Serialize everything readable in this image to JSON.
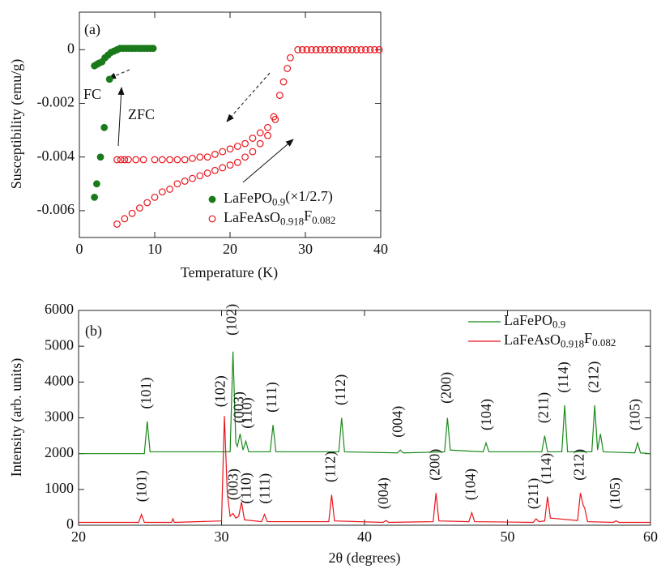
{
  "chart_data": [
    {
      "type": "scatter",
      "annotations": [
        "(a)",
        "FC",
        "ZFC"
      ],
      "x_label": "Temperature (K)",
      "y_label": "Susceptibility (emu/g)",
      "xlim": [
        0,
        40
      ],
      "xticks": [
        0,
        10,
        20,
        30,
        40
      ],
      "ylim": [
        -0.007,
        0.0014
      ],
      "yticks": [
        0,
        -0.002,
        -0.004,
        -0.006
      ],
      "series": [
        {
          "name": "LaFePO0.9(×1/2.7)",
          "color": "#1a7a1a",
          "marker": "filled",
          "x": [
            2,
            2.3,
            2.8,
            3.3,
            4,
            2,
            2.3,
            2.6,
            3,
            3.4,
            3.8,
            4.2,
            4.6,
            5,
            5.4,
            5.8,
            6.2,
            6.6,
            7,
            7.4,
            7.8,
            8.2,
            8.6,
            9,
            9.4,
            9.8
          ],
          "values": [
            -0.0055,
            -0.005,
            -0.004,
            -0.0029,
            -0.0011,
            -0.0006,
            -0.00055,
            -0.0005,
            -0.00045,
            -0.0003,
            -0.0002,
            -0.0001,
            -5e-05,
            0,
            5e-05,
            5e-05,
            5e-05,
            5e-05,
            5e-05,
            5e-05,
            5e-05,
            5e-05,
            5e-05,
            5e-05,
            5e-05,
            5e-05
          ]
        },
        {
          "name": "LaFeAsO0.918F0.082",
          "color": "#e8141c",
          "marker": "open",
          "x": [
            5,
            5.5,
            6,
            6.5,
            7.5,
            8.5,
            10,
            11,
            12,
            13,
            14,
            15,
            16,
            17,
            18,
            19,
            20,
            21,
            22,
            23,
            24,
            25,
            25.8,
            5,
            6,
            7,
            8,
            9,
            10,
            11,
            12,
            13,
            14,
            15,
            16,
            17,
            18,
            19,
            20,
            21,
            22,
            23,
            24,
            25,
            26,
            26.6,
            27.1,
            27.6,
            28,
            29,
            29.6,
            30.2,
            30.8,
            31.4,
            32,
            32.6,
            33.2,
            33.8,
            34.4,
            35,
            35.6,
            36.2,
            36.8,
            37.4,
            38,
            38.6,
            39.2,
            39.8
          ],
          "values": [
            -0.0041,
            -0.0041,
            -0.0041,
            -0.0041,
            -0.0041,
            -0.0041,
            -0.0041,
            -0.0041,
            -0.0041,
            -0.0041,
            -0.0041,
            -0.00405,
            -0.004,
            -0.004,
            -0.0039,
            -0.0038,
            -0.0037,
            -0.0036,
            -0.0035,
            -0.0033,
            -0.0031,
            -0.0029,
            -0.0025,
            -0.0065,
            -0.0063,
            -0.0061,
            -0.0059,
            -0.0057,
            -0.0055,
            -0.0053,
            -0.0052,
            -0.005,
            -0.0049,
            -0.0048,
            -0.0047,
            -0.0046,
            -0.0045,
            -0.0044,
            -0.0043,
            -0.0042,
            -0.004,
            -0.0038,
            -0.0035,
            -0.0032,
            -0.0026,
            -0.0017,
            -0.0012,
            -0.0007,
            -0.0003,
            0,
            0,
            0,
            0,
            0,
            0,
            0,
            0,
            0,
            0,
            0,
            0,
            0,
            0,
            0,
            0,
            0,
            0,
            0
          ]
        }
      ]
    },
    {
      "type": "line",
      "annotations": [
        "(b)"
      ],
      "x_label": "2θ (degrees)",
      "y_label": "Intensity (arb. units)",
      "xlim": [
        20,
        60
      ],
      "xticks": [
        20,
        30,
        40,
        50,
        60
      ],
      "ylim": [
        0,
        6000
      ],
      "yticks": [
        0,
        1000,
        2000,
        3000,
        4000,
        5000,
        6000
      ],
      "series": [
        {
          "name": "LaFePO0.9",
          "color": "#1a8a1a",
          "x": [
            20,
            24.6,
            24.8,
            25.0,
            30.6,
            30.8,
            31.0,
            31.1,
            31.3,
            31.5,
            31.7,
            31.9,
            33.4,
            33.6,
            33.8,
            38.2,
            38.4,
            38.6,
            42.3,
            42.5,
            42.7,
            45.6,
            45.8,
            46.0,
            48.3,
            48.5,
            48.7,
            52.4,
            52.6,
            52.8,
            53.8,
            54.0,
            54.2,
            55.9,
            56.1,
            56.3,
            56.5,
            56.7,
            58.9,
            59.1,
            59.3,
            60
          ],
          "values": [
            2000,
            2000,
            2900,
            2050,
            2050,
            4850,
            2300,
            2200,
            2550,
            2100,
            2350,
            2050,
            2050,
            2800,
            2050,
            2050,
            3000,
            2050,
            2020,
            2100,
            2020,
            2050,
            3000,
            2100,
            2050,
            2300,
            2050,
            2050,
            2500,
            2050,
            2050,
            3350,
            2050,
            2050,
            3350,
            2100,
            2550,
            2050,
            2020,
            2300,
            2020,
            2000
          ],
          "peak_labels": [
            "(101)",
            "(102)",
            "(003)",
            "(110)",
            "(111)",
            "(112)",
            "(004)",
            "(200)",
            "(104)",
            "(211)",
            "(114)",
            "(212)",
            "(105)"
          ]
        },
        {
          "name": "LaFeAsO0.918F0.082",
          "color": "#e8141c",
          "x": [
            20,
            24.2,
            24.4,
            24.6,
            26.5,
            26.6,
            26.7,
            30.0,
            30.2,
            30.4,
            30.6,
            30.8,
            31.0,
            31.2,
            31.4,
            31.6,
            32.8,
            33.0,
            33.2,
            37.5,
            37.7,
            37.9,
            41.3,
            41.5,
            41.7,
            44.8,
            45.0,
            45.2,
            47.3,
            47.5,
            47.7,
            51.8,
            52.0,
            52.2,
            52.6,
            52.8,
            53.0,
            54.9,
            55.1,
            55.3,
            55.4,
            55.6,
            57.4,
            57.6,
            57.8,
            60
          ],
          "values": [
            80,
            80,
            300,
            80,
            80,
            180,
            80,
            120,
            3050,
            900,
            250,
            330,
            200,
            250,
            650,
            150,
            100,
            300,
            100,
            100,
            850,
            120,
            80,
            130,
            80,
            100,
            900,
            120,
            100,
            350,
            100,
            80,
            180,
            100,
            120,
            800,
            200,
            130,
            900,
            550,
            480,
            100,
            80,
            120,
            80,
            80
          ],
          "peak_labels": [
            "(101)",
            "(102)",
            "(003)",
            "(110)",
            "(111)",
            "(112)",
            "(004)",
            "(200)",
            "(104)",
            "(211)",
            "(114)",
            "(212)",
            "(105)"
          ]
        }
      ]
    }
  ]
}
